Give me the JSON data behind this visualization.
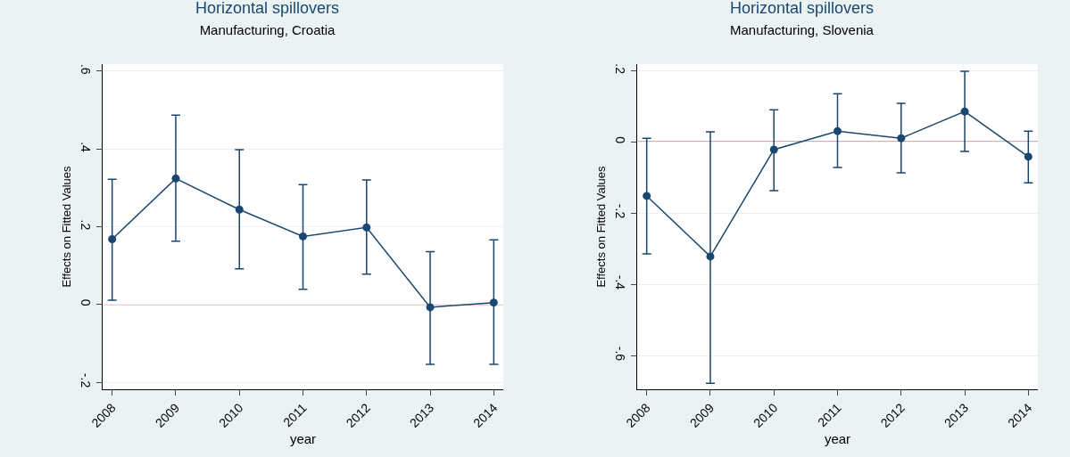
{
  "chart_data": [
    {
      "type": "line",
      "title": "Horizontal spillovers",
      "subtitle": "Manufacturing, Croatia",
      "xlabel": "year",
      "ylabel": "Effects on Fitted Values",
      "categories": [
        "2008",
        "2009",
        "2010",
        "2011",
        "2012",
        "2013",
        "2014"
      ],
      "series": [
        {
          "color": "#1a476f",
          "values": [
            0.168,
            0.324,
            0.244,
            0.175,
            0.198,
            -0.007,
            0.005
          ],
          "errors": [
            [
              0.011,
              0.322
            ],
            [
              0.163,
              0.487
            ],
            [
              0.092,
              0.398
            ],
            [
              0.039,
              0.308
            ],
            [
              0.078,
              0.32
            ],
            [
              -0.154,
              0.136
            ],
            [
              -0.154,
              0.166
            ]
          ]
        }
      ],
      "ylim": [
        -0.218,
        0.618
      ],
      "yticks": [
        {
          "value": -0.2,
          "label": "-.2"
        },
        0,
        {
          "value": 0.2,
          "label": ".2"
        },
        {
          "value": 0.4,
          "label": ".4"
        },
        {
          "value": 0.6,
          "label": ".6"
        }
      ],
      "ref_lines": [
        {
          "axis": "y",
          "value": 0,
          "color": "#e8505b"
        }
      ],
      "grid": "y",
      "marker": "circle",
      "line_style": "solid"
    },
    {
      "type": "line",
      "title": "Horizontal spillovers",
      "subtitle": "Manufacturing, Slovenia",
      "xlabel": "year",
      "ylabel": "Effects on Fitted Values",
      "categories": [
        "2008",
        "2009",
        "2010",
        "2011",
        "2012",
        "2013",
        "2014"
      ],
      "series": [
        {
          "color": "#1a476f",
          "values": [
            -0.152,
            -0.322,
            -0.022,
            0.03,
            0.01,
            0.085,
            -0.042
          ],
          "errors": [
            [
              -0.315,
              0.01
            ],
            [
              -0.678,
              0.028
            ],
            [
              -0.137,
              0.09
            ],
            [
              -0.072,
              0.135
            ],
            [
              -0.087,
              0.108
            ],
            [
              -0.027,
              0.198
            ],
            [
              -0.115,
              0.03
            ]
          ]
        }
      ],
      "ylim": [
        -0.695,
        0.218
      ],
      "yticks": [
        {
          "value": -0.6,
          "label": "-.6"
        },
        {
          "value": -0.4,
          "label": "-.4"
        },
        {
          "value": -0.2,
          "label": "-.2"
        },
        0,
        {
          "value": 0.2,
          "label": ".2"
        }
      ],
      "ref_lines": [
        {
          "axis": "y",
          "value": 0,
          "color": "#7a2a2a"
        }
      ],
      "grid": "y",
      "marker": "circle",
      "line_style": "solid"
    }
  ]
}
